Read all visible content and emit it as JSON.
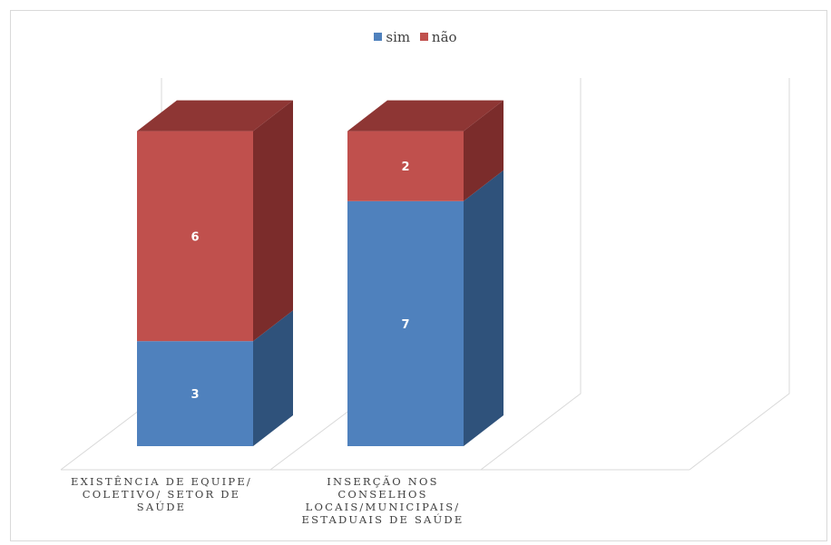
{
  "chart_data": {
    "type": "bar",
    "stacked": true,
    "three_d": true,
    "categories": [
      "EXISTÊNCIA DE EQUIPE/\nCOLETIVO/ SETOR DE\nSAÚDE",
      "INSERÇÃO NOS\nCONSELHOS\nLOCAIS/MUNICIPAIS/\nESTADUAIS DE SAÚDE"
    ],
    "series": [
      {
        "name": "sim",
        "values": [
          3,
          7
        ],
        "color": "#4f81bd",
        "side_color": "#2f527b",
        "top_color": "#3f6a9c"
      },
      {
        "name": "não",
        "values": [
          6,
          2
        ],
        "color": "#c0504d",
        "side_color": "#7b2c2b",
        "top_color": "#8e3634"
      }
    ],
    "legend_position": "top",
    "data_labels": true,
    "ylim": [
      0,
      9
    ],
    "grid": false
  }
}
